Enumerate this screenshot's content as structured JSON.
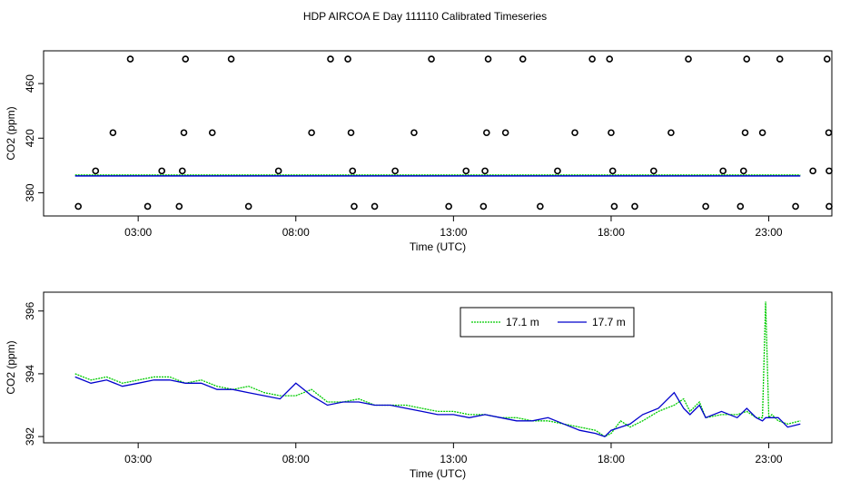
{
  "title": "HDP AIRCOA E  Day 111110  Calibrated Timeseries",
  "chart_data": [
    {
      "type": "scatter+line",
      "xlabel": "Time (UTC)",
      "ylabel": "CO2 (ppm)",
      "xlim": [
        0.0,
        25.0
      ],
      "ylim": [
        363,
        484
      ],
      "xticks": [
        {
          "value": 3,
          "label": "03:00"
        },
        {
          "value": 8,
          "label": "08:00"
        },
        {
          "value": 13,
          "label": "13:00"
        },
        {
          "value": 18,
          "label": "18:00"
        },
        {
          "value": 23,
          "label": "23:00"
        }
      ],
      "yticks": [
        380,
        420,
        460
      ],
      "series": [
        {
          "color": "#00cc00",
          "dash": "2,1"
        },
        {
          "color": "#0000cc"
        }
      ],
      "line_y": 393,
      "calibration_points": [
        {
          "x": 1.1,
          "y": 370
        },
        {
          "x": 1.65,
          "y": 396
        },
        {
          "x": 2.2,
          "y": 424
        },
        {
          "x": 2.75,
          "y": 478
        },
        {
          "x": 3.3,
          "y": 370
        },
        {
          "x": 3.75,
          "y": 396
        },
        {
          "x": 4.3,
          "y": 370
        },
        {
          "x": 4.4,
          "y": 396
        },
        {
          "x": 4.45,
          "y": 424
        },
        {
          "x": 4.5,
          "y": 478
        },
        {
          "x": 5.35,
          "y": 424
        },
        {
          "x": 5.95,
          "y": 478
        },
        {
          "x": 6.5,
          "y": 370
        },
        {
          "x": 7.45,
          "y": 396
        },
        {
          "x": 8.5,
          "y": 424
        },
        {
          "x": 9.1,
          "y": 478
        },
        {
          "x": 9.65,
          "y": 478
        },
        {
          "x": 9.75,
          "y": 424
        },
        {
          "x": 9.8,
          "y": 396
        },
        {
          "x": 9.85,
          "y": 370
        },
        {
          "x": 10.5,
          "y": 370
        },
        {
          "x": 11.15,
          "y": 396
        },
        {
          "x": 11.75,
          "y": 424
        },
        {
          "x": 12.3,
          "y": 478
        },
        {
          "x": 12.85,
          "y": 370
        },
        {
          "x": 13.4,
          "y": 396
        },
        {
          "x": 13.95,
          "y": 370
        },
        {
          "x": 14.0,
          "y": 396
        },
        {
          "x": 14.05,
          "y": 424
        },
        {
          "x": 14.1,
          "y": 478
        },
        {
          "x": 14.65,
          "y": 424
        },
        {
          "x": 15.2,
          "y": 478
        },
        {
          "x": 15.75,
          "y": 370
        },
        {
          "x": 16.3,
          "y": 396
        },
        {
          "x": 16.85,
          "y": 424
        },
        {
          "x": 17.4,
          "y": 478
        },
        {
          "x": 17.95,
          "y": 478
        },
        {
          "x": 18.0,
          "y": 424
        },
        {
          "x": 18.05,
          "y": 396
        },
        {
          "x": 18.1,
          "y": 370
        },
        {
          "x": 18.75,
          "y": 370
        },
        {
          "x": 19.35,
          "y": 396
        },
        {
          "x": 19.9,
          "y": 424
        },
        {
          "x": 20.45,
          "y": 478
        },
        {
          "x": 21.0,
          "y": 370
        },
        {
          "x": 21.55,
          "y": 396
        },
        {
          "x": 22.1,
          "y": 370
        },
        {
          "x": 22.2,
          "y": 396
        },
        {
          "x": 22.25,
          "y": 424
        },
        {
          "x": 22.3,
          "y": 478
        },
        {
          "x": 22.8,
          "y": 424
        },
        {
          "x": 23.35,
          "y": 478
        },
        {
          "x": 23.85,
          "y": 370
        },
        {
          "x": 24.4,
          "y": 396
        },
        {
          "x": 24.95,
          "y": 370
        },
        {
          "x": 25.0,
          "y": 396
        },
        {
          "x": 24.9,
          "y": 424
        },
        {
          "x": 24.85,
          "y": 478
        }
      ]
    },
    {
      "type": "line",
      "xlabel": "Time (UTC)",
      "ylabel": "CO2 (ppm)",
      "xlim": [
        0.0,
        25.0
      ],
      "ylim": [
        391.8,
        396.6
      ],
      "xticks": [
        {
          "value": 3,
          "label": "03:00"
        },
        {
          "value": 8,
          "label": "08:00"
        },
        {
          "value": 13,
          "label": "13:00"
        },
        {
          "value": 18,
          "label": "18:00"
        },
        {
          "value": 23,
          "label": "23:00"
        }
      ],
      "yticks": [
        392,
        394,
        396
      ],
      "legend_position": "top-right",
      "series": [
        {
          "name": "17.1 m",
          "color": "#00cc00",
          "dash": "2,1",
          "x": [
            1.0,
            1.5,
            2.0,
            2.5,
            3.0,
            3.5,
            4.0,
            4.5,
            5.0,
            5.5,
            6.0,
            6.5,
            7.0,
            7.5,
            8.0,
            8.5,
            9.0,
            9.5,
            10.0,
            10.5,
            11.0,
            11.5,
            12.0,
            12.5,
            13.0,
            13.5,
            14.0,
            14.5,
            15.0,
            15.5,
            16.0,
            16.5,
            17.0,
            17.5,
            17.8,
            18.0,
            18.3,
            18.6,
            19.0,
            19.5,
            20.0,
            20.3,
            20.5,
            20.8,
            21.0,
            21.5,
            22.0,
            22.3,
            22.6,
            22.8,
            22.9,
            23.0,
            23.1,
            23.3,
            23.6,
            24.0
          ],
          "values": [
            394.0,
            393.8,
            393.9,
            393.7,
            393.8,
            393.9,
            393.9,
            393.7,
            393.8,
            393.6,
            393.5,
            393.6,
            393.4,
            393.3,
            393.3,
            393.5,
            393.1,
            393.1,
            393.2,
            393.0,
            393.0,
            393.0,
            392.9,
            392.8,
            392.8,
            392.7,
            392.7,
            392.6,
            392.6,
            392.5,
            392.5,
            392.4,
            392.3,
            392.2,
            392.0,
            392.1,
            392.5,
            392.3,
            392.5,
            392.8,
            393.0,
            393.2,
            392.8,
            393.1,
            392.6,
            392.7,
            392.7,
            392.8,
            392.6,
            392.6,
            396.3,
            392.6,
            392.7,
            392.5,
            392.4,
            392.5
          ]
        },
        {
          "name": "17.7 m",
          "color": "#0000cc",
          "x": [
            1.0,
            1.5,
            2.0,
            2.5,
            3.0,
            3.5,
            4.0,
            4.5,
            5.0,
            5.5,
            6.0,
            6.5,
            7.0,
            7.5,
            8.0,
            8.5,
            9.0,
            9.5,
            10.0,
            10.5,
            11.0,
            11.5,
            12.0,
            12.5,
            13.0,
            13.5,
            14.0,
            14.5,
            15.0,
            15.5,
            16.0,
            16.5,
            17.0,
            17.5,
            17.8,
            18.0,
            18.3,
            18.6,
            19.0,
            19.5,
            20.0,
            20.3,
            20.5,
            20.8,
            21.0,
            21.5,
            22.0,
            22.3,
            22.6,
            22.8,
            22.9,
            23.0,
            23.1,
            23.3,
            23.6,
            24.0
          ],
          "values": [
            393.9,
            393.7,
            393.8,
            393.6,
            393.7,
            393.8,
            393.8,
            393.7,
            393.7,
            393.5,
            393.5,
            393.4,
            393.3,
            393.2,
            393.7,
            393.3,
            393.0,
            393.1,
            393.1,
            393.0,
            393.0,
            392.9,
            392.8,
            392.7,
            392.7,
            392.6,
            392.7,
            392.6,
            392.5,
            392.5,
            392.6,
            392.4,
            392.2,
            392.1,
            392.0,
            392.2,
            392.3,
            392.4,
            392.7,
            392.9,
            393.4,
            392.9,
            392.7,
            393.0,
            392.6,
            392.8,
            392.6,
            392.9,
            392.6,
            392.5,
            392.6,
            392.6,
            392.6,
            392.6,
            392.3,
            392.4
          ]
        }
      ]
    }
  ]
}
